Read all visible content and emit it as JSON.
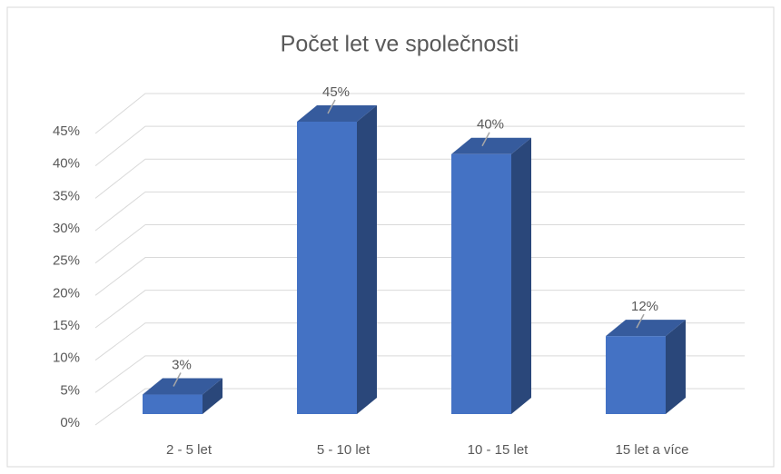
{
  "chart_data": {
    "type": "bar3d",
    "title": "Počet let ve společnosti",
    "categories": [
      "2 - 5 let",
      "5 - 10 let",
      "10 - 15 let",
      "15 let a více"
    ],
    "values": [
      3,
      45,
      40,
      12
    ],
    "value_labels": [
      "3%",
      "45%",
      "40%",
      "12%"
    ],
    "color": "#4472c4",
    "ylim": [
      0,
      45
    ],
    "yticks": [
      {
        "value": 0,
        "label": "0%"
      },
      {
        "value": 5,
        "label": "5%"
      },
      {
        "value": 10,
        "label": "10%"
      },
      {
        "value": 15,
        "label": "15%"
      },
      {
        "value": 20,
        "label": "20%"
      },
      {
        "value": 25,
        "label": "25%"
      },
      {
        "value": 30,
        "label": "30%"
      },
      {
        "value": 35,
        "label": "35%"
      },
      {
        "value": 40,
        "label": "40%"
      },
      {
        "value": 45,
        "label": "45%"
      }
    ],
    "grid": true
  }
}
